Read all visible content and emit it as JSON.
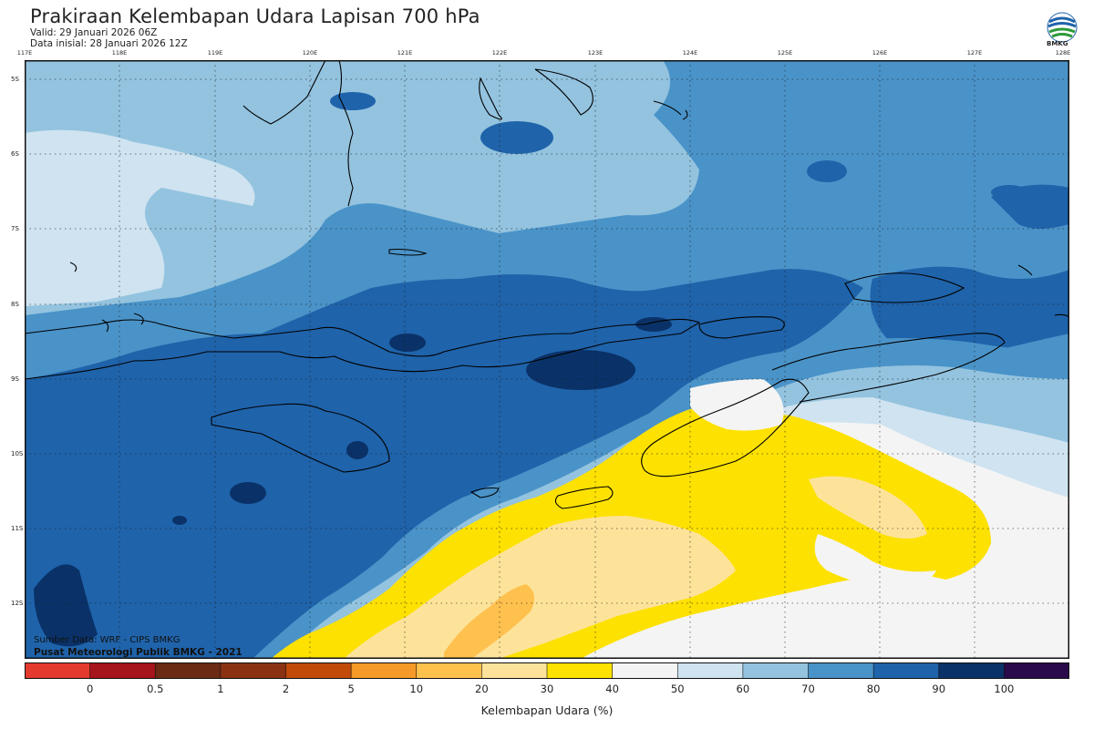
{
  "header": {
    "title": "Prakiraan Kelembapan Udara Lapisan 700 hPa",
    "valid": "Valid: 29 Januari 2026 06Z",
    "initial": "Data inisial: 28 Januari 2026 12Z",
    "logo_text": "BMKG"
  },
  "axes": {
    "longitudes": [
      "117E",
      "118E",
      "119E",
      "120E",
      "121E",
      "122E",
      "123E",
      "124E",
      "125E",
      "126E",
      "127E",
      "128E"
    ],
    "latitudes": [
      "5S",
      "6S",
      "7S",
      "8S",
      "9S",
      "10S",
      "11S",
      "12S"
    ]
  },
  "credits": {
    "source": "Sumber Data: WRF - CIPS BMKG",
    "org": "Pusat Meteorologi Publik BMKG - 2021"
  },
  "colorbar": {
    "label": "Kelembapan Udara (%)",
    "ticks": [
      "0",
      "0.5",
      "1",
      "2",
      "5",
      "10",
      "20",
      "30",
      "40",
      "50",
      "60",
      "70",
      "80",
      "90",
      "100"
    ],
    "colors": [
      "#e53a2e",
      "#a6141c",
      "#6b2a14",
      "#8a3212",
      "#c24a0a",
      "#f59a28",
      "#ffc14e",
      "#fde39a",
      "#fde100",
      "#f4f4f4",
      "#cfe3f0",
      "#93c3df",
      "#4a93c8",
      "#1f63aa",
      "#0a3268",
      "#2a0a4a"
    ]
  },
  "palette": {
    "rh_90_100": "#0a3268",
    "rh_80_90": "#1f63aa",
    "rh_70_80": "#4a93c8",
    "rh_60_70": "#93c3df",
    "rh_50_60": "#cfe3f0",
    "rh_40_50": "#f4f4f4",
    "rh_30_40": "#fde100",
    "rh_20_30": "#fde39a",
    "rh_10_20": "#ffc14e"
  }
}
